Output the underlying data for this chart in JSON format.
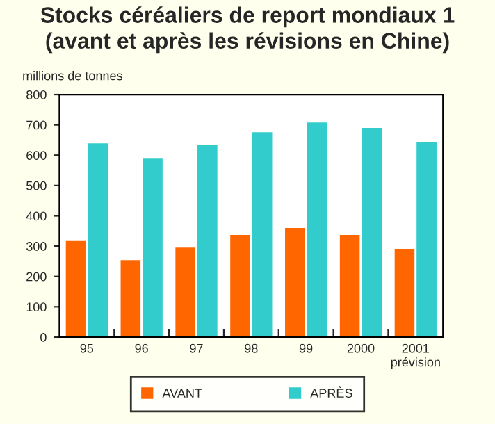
{
  "chart_data": {
    "type": "bar",
    "title": "Stocks céréaliers de report mondiaux 1\n(avant et après les révisions en Chine)",
    "ylabel": "millions de tonnes",
    "categories": [
      "95",
      "96",
      "97",
      "98",
      "99",
      "2000",
      "2001\nprévision"
    ],
    "series": [
      {
        "name": "AVANT",
        "color": "#ff6600",
        "values": [
          320,
          257,
          298,
          340,
          363,
          340,
          294
        ]
      },
      {
        "name": "APRÈS",
        "color": "#33cccc",
        "values": [
          642,
          592,
          638,
          679,
          711,
          693,
          647
        ]
      }
    ],
    "ylim": [
      0,
      800
    ],
    "yticks": [
      0,
      100,
      200,
      300,
      400,
      500,
      600,
      700,
      800
    ],
    "grid": false,
    "legend": "bottom"
  }
}
